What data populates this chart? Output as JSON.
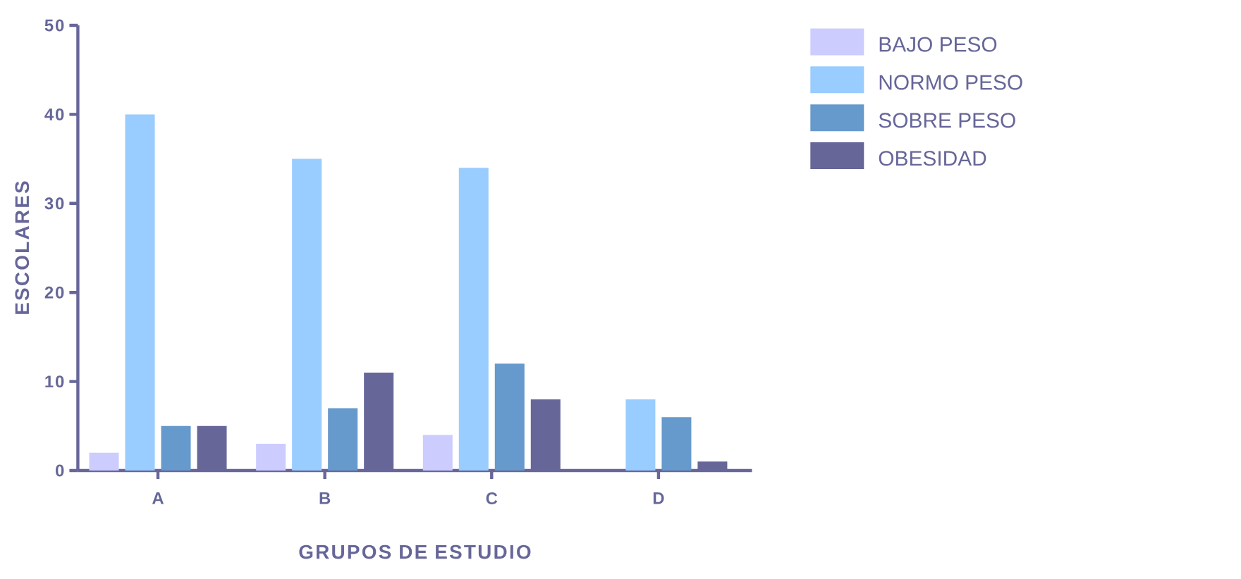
{
  "chart_data": {
    "type": "bar",
    "xlabel": "GRUPOS DE ESTUDIO",
    "ylabel": "ESCOLARES",
    "categories": [
      "A",
      "B",
      "C",
      "D"
    ],
    "series": [
      {
        "name": "BAJO PESO",
        "color": "#ccccff",
        "values": [
          2,
          3,
          4,
          0
        ]
      },
      {
        "name": "NORMO PESO",
        "color": "#99ccff",
        "values": [
          40,
          35,
          34,
          8
        ]
      },
      {
        "name": "SOBRE PESO",
        "color": "#6699cc",
        "values": [
          5,
          7,
          12,
          6
        ]
      },
      {
        "name": "OBESIDAD",
        "color": "#666699",
        "values": [
          5,
          11,
          8,
          1
        ]
      }
    ],
    "ylim": [
      0,
      50
    ],
    "yticks": [
      0,
      10,
      20,
      30,
      40,
      50
    ],
    "legend": "top right"
  }
}
